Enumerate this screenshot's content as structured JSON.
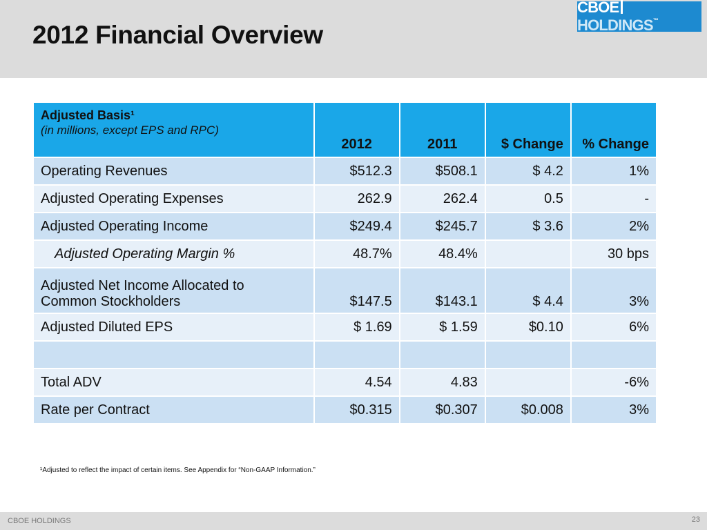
{
  "slide": {
    "title": "2012 Financial Overview",
    "logo_text_a": "CBOE",
    "logo_text_b": "HOLDINGS",
    "logo_mark": "™"
  },
  "table": {
    "header": {
      "label_main": "Adjusted Basis¹",
      "label_sub": "(in millions, except EPS and RPC)",
      "columns": [
        "2012",
        "2011",
        "$ Change",
        "% Change"
      ]
    },
    "rows": [
      {
        "label": "Operating Revenues",
        "v2012": "$512.3",
        "v2011": "$508.1",
        "dchg": "$  4.2",
        "pchg": "1%"
      },
      {
        "label": "Adjusted Operating Expenses",
        "v2012": "262.9",
        "v2011": "262.4",
        "dchg": "0.5",
        "pchg": "-"
      },
      {
        "label": "Adjusted Operating Income",
        "v2012": "$249.4",
        "v2011": "$245.7",
        "dchg": "$  3.6",
        "pchg": "2%"
      },
      {
        "label": "Adjusted Operating Margin %",
        "v2012": "48.7%",
        "v2011": "48.4%",
        "dchg": "",
        "pchg": "30 bps"
      },
      {
        "label_line1": "Adjusted Net Income Allocated to",
        "label_line2": "Common Stockholders",
        "v2012": "$147.5",
        "v2011": "$143.1",
        "dchg": "$  4.4",
        "pchg": "3%"
      },
      {
        "label": "Adjusted Diluted EPS",
        "v2012": "$  1.69",
        "v2011": "$  1.59",
        "dchg": "$0.10",
        "pchg": "6%"
      },
      {
        "label": "",
        "v2012": "",
        "v2011": "",
        "dchg": "",
        "pchg": ""
      },
      {
        "label": "Total ADV",
        "v2012": "4.54",
        "v2011": "4.83",
        "dchg": "",
        "pchg": "-6%"
      },
      {
        "label": "Rate per Contract",
        "v2012": "$0.315",
        "v2011": "$0.307",
        "dchg": "$0.008",
        "pchg": "3%"
      }
    ]
  },
  "footnote": "¹Adjusted to reflect the impact of certain items. See Appendix for  “Non-GAAP Information.”",
  "footer": {
    "left": "CBOE HOLDINGS",
    "page_number": "23"
  }
}
